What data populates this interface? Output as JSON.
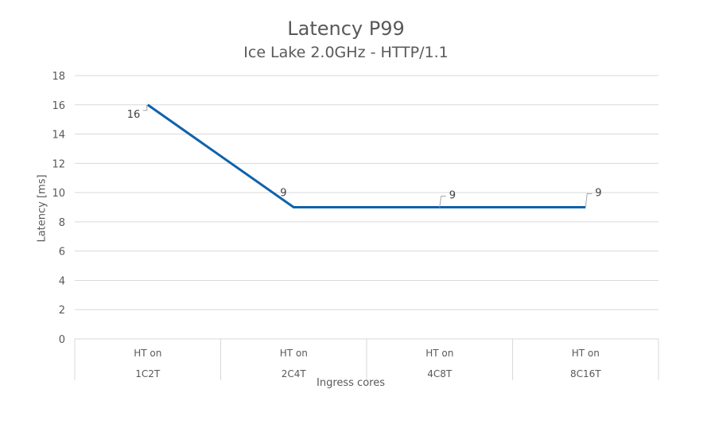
{
  "chart": {
    "title": "Latency P99",
    "subtitle": "Ice Lake 2.0GHz - HTTP/1.1",
    "ylabel": "Latency [ms]",
    "xlabel": "Ingress cores",
    "line_color": "#0f62ab",
    "grid_color": "#d9d9d9"
  },
  "chart_data": {
    "type": "line",
    "title": "Latency P99",
    "subtitle": "Ice Lake 2.0GHz - HTTP/1.1",
    "xlabel": "Ingress cores",
    "ylabel": "Latency [ms]",
    "categories": [
      {
        "group": "HT on",
        "label": "1C2T"
      },
      {
        "group": "HT on",
        "label": "2C4T"
      },
      {
        "group": "HT on",
        "label": "4C8T"
      },
      {
        "group": "HT on",
        "label": "8C16T"
      }
    ],
    "series": [
      {
        "name": "Latency P99",
        "values": [
          16,
          9,
          9,
          9
        ]
      }
    ],
    "data_labels": [
      "16",
      "9",
      "9",
      "9"
    ],
    "ylim": [
      0,
      18
    ],
    "yticks": [
      0,
      2,
      4,
      6,
      8,
      10,
      12,
      14,
      16,
      18
    ],
    "grid": true,
    "legend": "none"
  }
}
